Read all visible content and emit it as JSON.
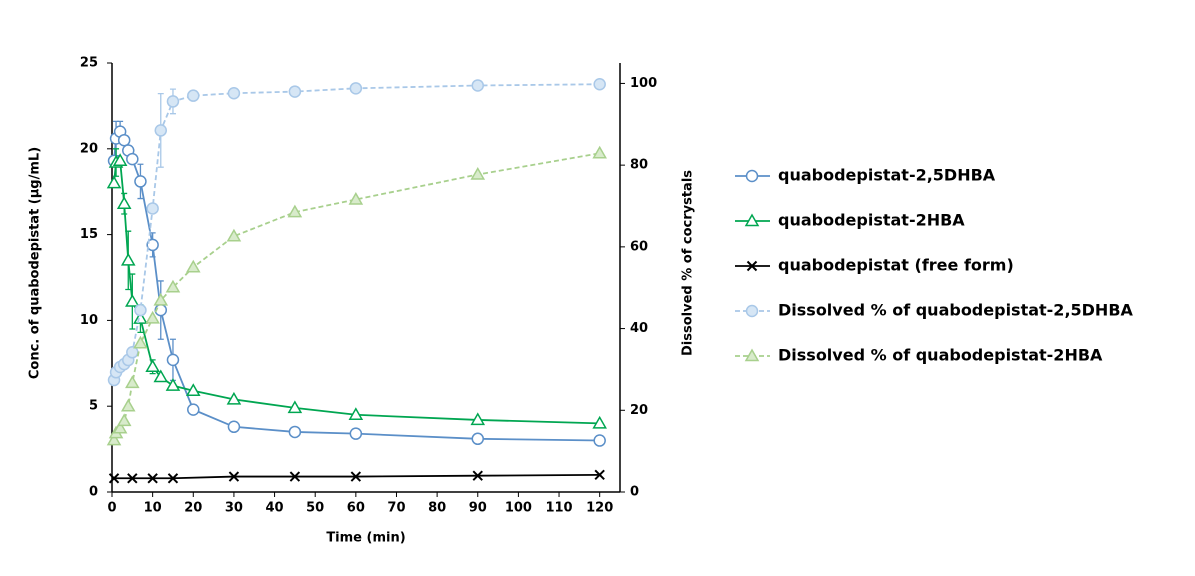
{
  "chart_data": {
    "type": "line",
    "xlabel": "Time (min)",
    "ylabel": "Conc. of quabodepistat (μg/mL)",
    "y2label": "Dissolved % of cocrystals",
    "xlim": [
      0,
      125
    ],
    "xticks": [
      0,
      10,
      20,
      30,
      40,
      50,
      60,
      70,
      80,
      90,
      100,
      110,
      120
    ],
    "ylim": [
      0,
      25
    ],
    "yticks": [
      0,
      5,
      10,
      15,
      20,
      25
    ],
    "y2lim": [
      0,
      105
    ],
    "y2ticks": [
      0,
      20,
      40,
      60,
      80,
      100
    ],
    "legend": "right",
    "series": [
      {
        "name": "quabodepistat-2,5DHBA",
        "color": "#5b8fc8",
        "fill": "#ffffff",
        "marker": "circle",
        "dashed": false,
        "x": [
          0.5,
          1,
          2,
          3,
          4,
          5,
          7,
          10,
          12,
          15,
          20,
          30,
          45,
          60,
          90,
          120
        ],
        "values": [
          19.3,
          20.6,
          21.0,
          20.5,
          19.9,
          19.4,
          18.1,
          14.4,
          10.6,
          7.7,
          4.8,
          3.8,
          3.5,
          3.4,
          3.1,
          3.0
        ],
        "errors": [
          null,
          1.0,
          0.6,
          null,
          null,
          null,
          1.0,
          0.7,
          1.7,
          1.2,
          0.2,
          null,
          null,
          null,
          null,
          null
        ]
      },
      {
        "name": "quabodepistat-2HBA",
        "color": "#00a651",
        "fill": "#ffffff",
        "marker": "triangle",
        "dashed": false,
        "x": [
          0.5,
          1,
          2,
          3,
          4,
          5,
          7,
          10,
          12,
          15,
          20,
          30,
          45,
          60,
          90,
          120
        ],
        "values": [
          18.0,
          19.2,
          19.3,
          16.8,
          13.5,
          11.1,
          10.1,
          7.3,
          6.7,
          6.2,
          5.9,
          5.4,
          4.9,
          4.5,
          4.2,
          4.0
        ],
        "errors": [
          null,
          0.8,
          null,
          0.6,
          1.7,
          1.6,
          0.8,
          0.4,
          null,
          null,
          null,
          null,
          null,
          null,
          null,
          null
        ]
      },
      {
        "name": "quabodepistat (free form)",
        "color": "#000000",
        "fill": "#000000",
        "marker": "x",
        "dashed": false,
        "x": [
          0.5,
          5,
          10,
          15,
          30,
          45,
          60,
          90,
          120
        ],
        "values": [
          0.8,
          0.8,
          0.8,
          0.8,
          0.9,
          0.9,
          0.9,
          0.95,
          1.0
        ]
      },
      {
        "name": "Dissolved % of quabodepistat-2,5DHBA",
        "color": "#a9c8e8",
        "fill": "#d6e6f5",
        "marker": "circle",
        "dashed": true,
        "axis": "y2",
        "x": [
          0.5,
          1,
          2,
          3,
          4,
          5,
          7,
          10,
          12,
          15,
          20,
          30,
          45,
          60,
          90,
          120
        ],
        "values": [
          27.4,
          29.3,
          30.6,
          31.3,
          32.3,
          34.2,
          44.5,
          69.4,
          88.5,
          95.6,
          97.0,
          97.6,
          98.0,
          98.8,
          99.5,
          99.8
        ],
        "errors": [
          null,
          null,
          null,
          null,
          null,
          null,
          null,
          null,
          9.0,
          3.0,
          null,
          null,
          null,
          0.6,
          null,
          null
        ]
      },
      {
        "name": "Dissolved % of quabodepistat-2HBA",
        "color": "#a8d08d",
        "fill": "#d8ebcb",
        "marker": "triangle",
        "dashed": true,
        "axis": "y2",
        "x": [
          0.5,
          1,
          2,
          3,
          4,
          5,
          7,
          10,
          12,
          15,
          20,
          30,
          45,
          60,
          90,
          120
        ],
        "values": [
          12.7,
          14.4,
          15.6,
          17.4,
          21.0,
          26.7,
          36.4,
          42.5,
          46.9,
          50.1,
          55.0,
          62.6,
          68.5,
          71.6,
          77.7,
          82.9
        ]
      }
    ]
  }
}
